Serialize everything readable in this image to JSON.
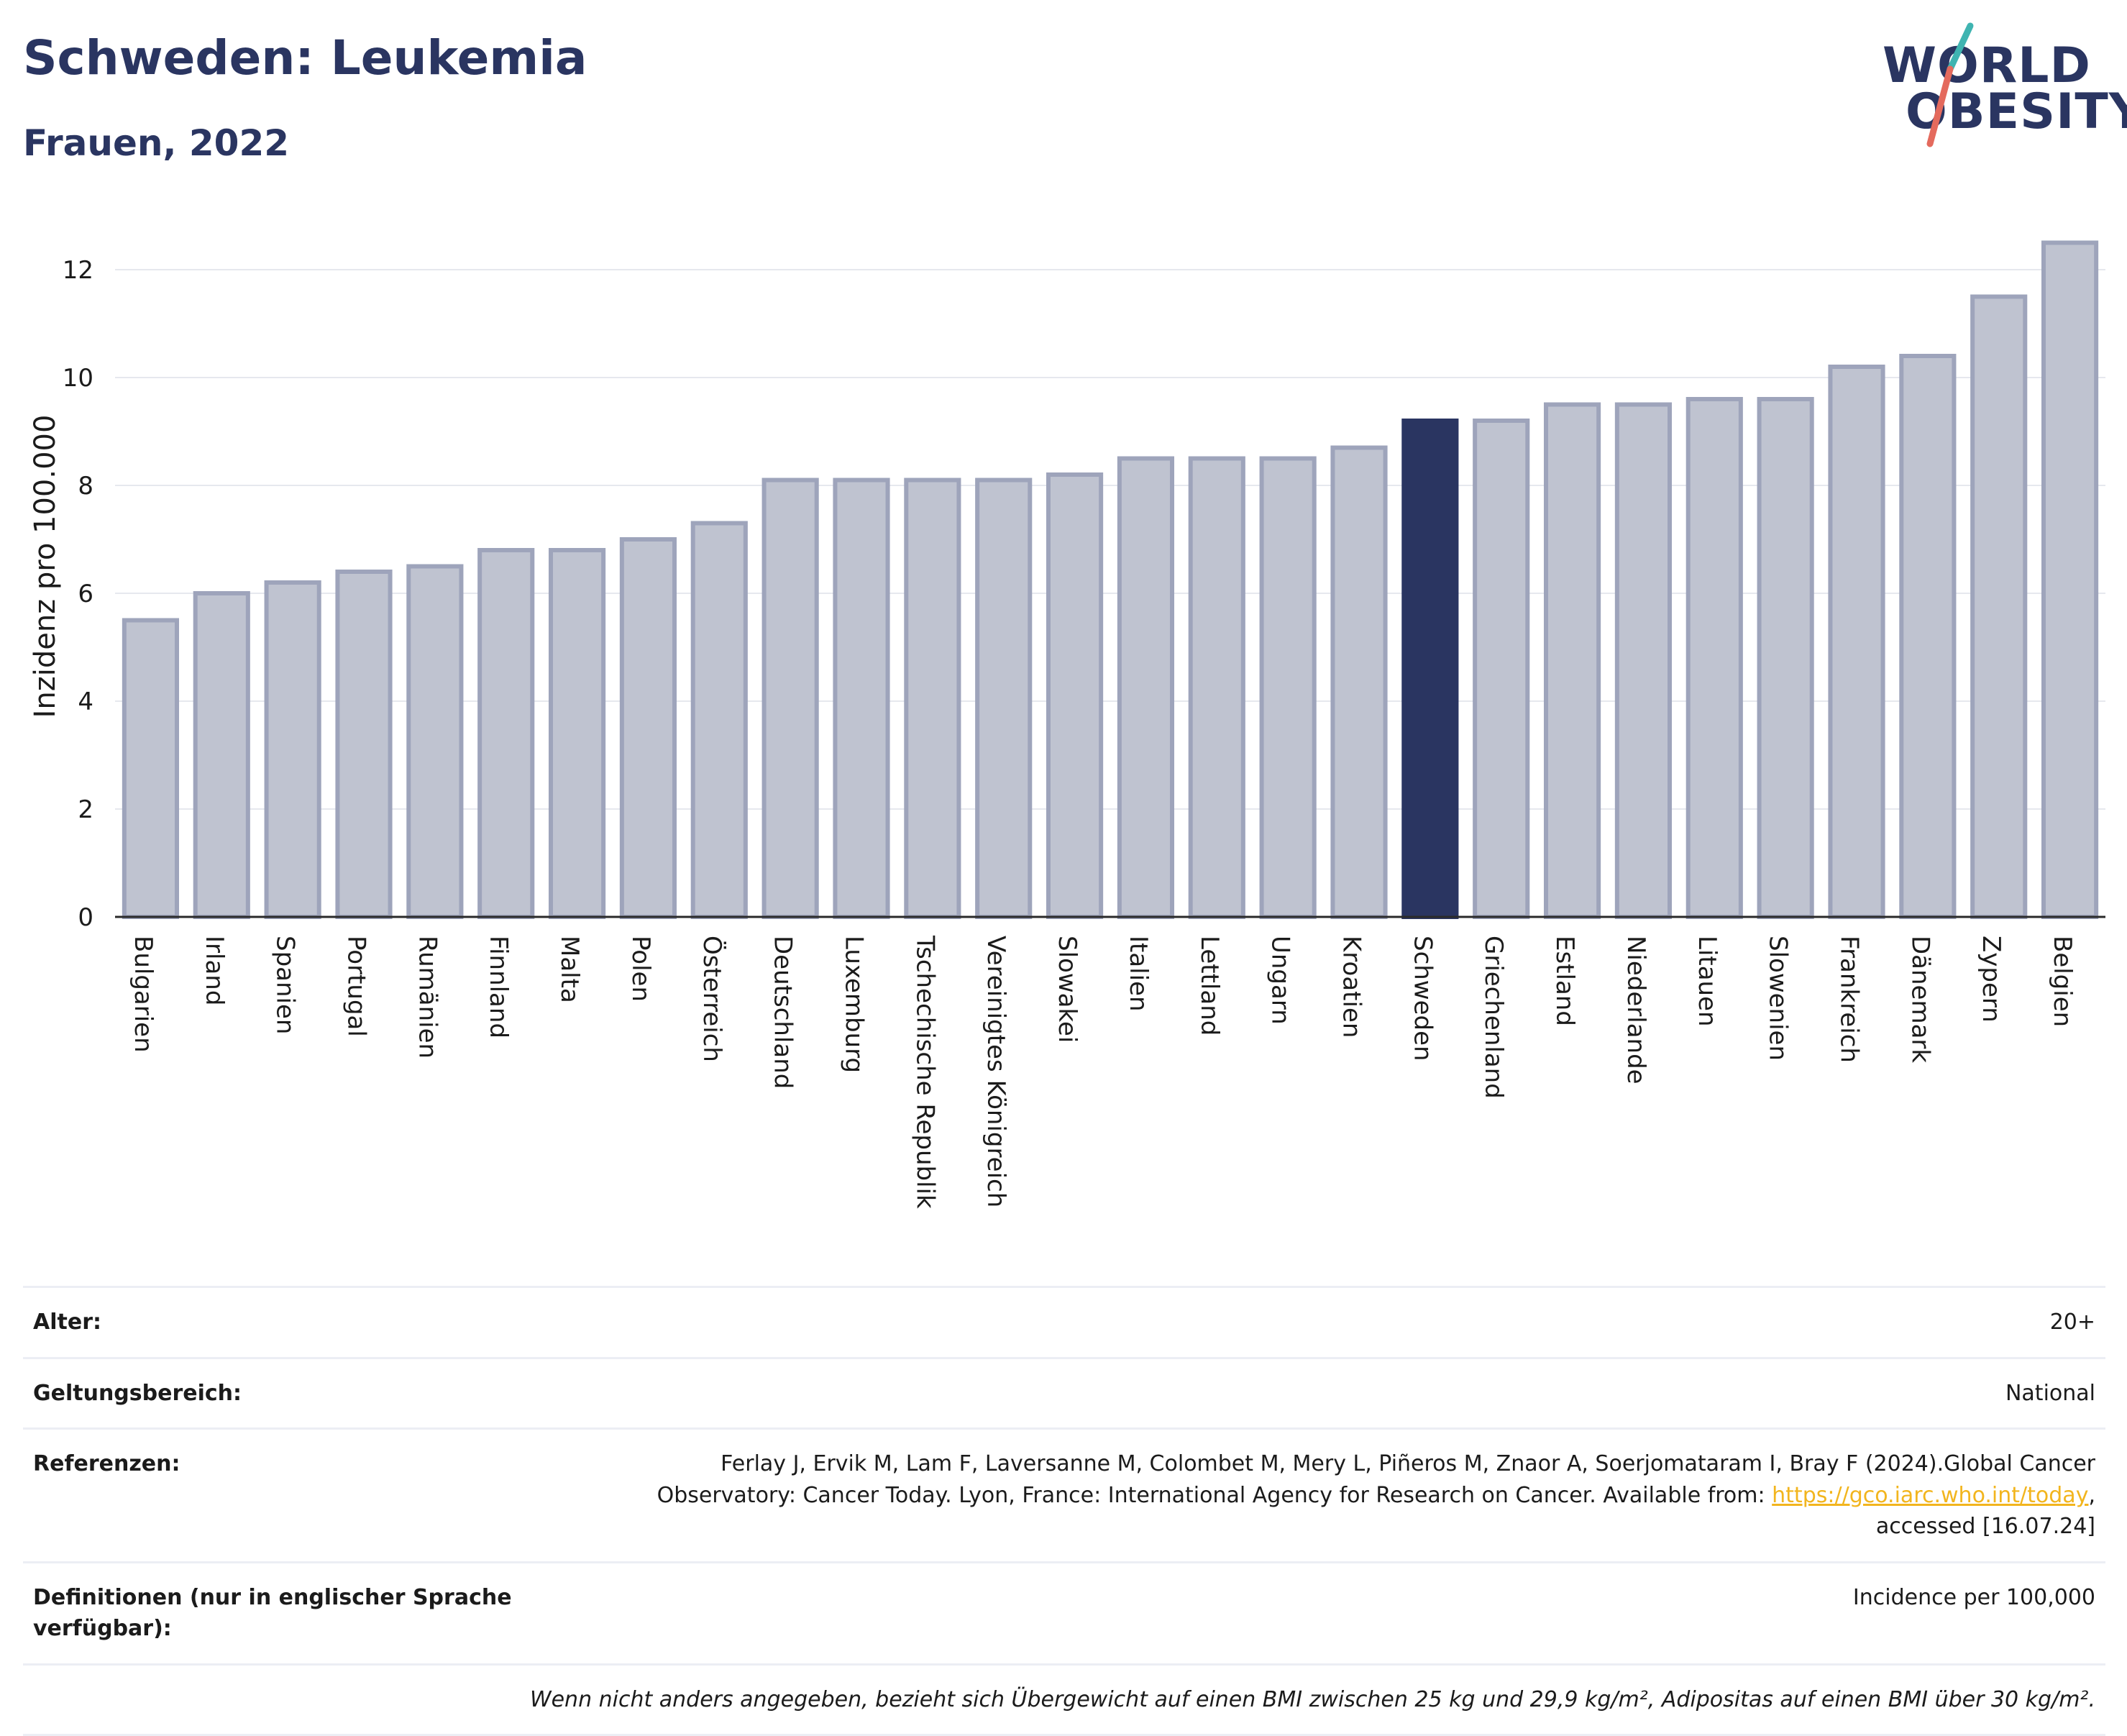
{
  "header": {
    "title": "Schweden: Leukemia",
    "subtitle": "Frauen, 2022"
  },
  "logo": {
    "line1": "WORLD",
    "line2": "OBESITY",
    "text_color": "#2a3561",
    "slash_colors": [
      "#3fb4b1",
      "#e46a5d"
    ]
  },
  "chart_data": {
    "type": "bar",
    "title": "Schweden: Leukemia",
    "subtitle": "Frauen, 2022",
    "ylabel": "Inzidenz pro 100.000",
    "xlabel": "",
    "ylim": [
      0,
      13
    ],
    "yticks": [
      0,
      2,
      4,
      6,
      8,
      10,
      12
    ],
    "grid": true,
    "highlight": "Schweden",
    "colors": {
      "bar": "#bfc3d0",
      "bar_border": "#9ea4bb",
      "highlight": "#2a3561"
    },
    "categories": [
      "Bulgarien",
      "Irland",
      "Spanien",
      "Portugal",
      "Rumänien",
      "Finnland",
      "Malta",
      "Polen",
      "Österreich",
      "Deutschland",
      "Luxemburg",
      "Tschechische Republik",
      "Vereinigtes Königreich",
      "Slowakei",
      "Italien",
      "Lettland",
      "Ungarn",
      "Kroatien",
      "Schweden",
      "Griechenland",
      "Estland",
      "Niederlande",
      "Litauen",
      "Slowenien",
      "Frankreich",
      "Dänemark",
      "Zypern",
      "Belgien"
    ],
    "values": [
      5.5,
      6.0,
      6.2,
      6.4,
      6.5,
      6.8,
      6.8,
      7.0,
      7.3,
      8.1,
      8.1,
      8.1,
      8.1,
      8.2,
      8.5,
      8.5,
      8.5,
      8.7,
      9.2,
      9.2,
      9.5,
      9.5,
      9.6,
      9.6,
      10.2,
      10.4,
      11.5,
      12.5
    ]
  },
  "info": {
    "rows": [
      {
        "label": "Alter:",
        "value": "20+"
      },
      {
        "label": "Geltungsbereich:",
        "value": "National"
      },
      {
        "label": "Referenzen:",
        "value_line1": "Ferlay J, Ervik M, Lam F, Laversanne M, Colombet M, Mery L, Piñeros M, Znaor A, Soerjomataram I, Bray F (2024).Global Cancer",
        "value_line2_pre": "Observatory: Cancer Today. Lyon, France: International Agency for Research on Cancer. Available from: ",
        "link": "https://gco.iarc.who.int/today",
        "value_line2_post": ",",
        "value_line3": "accessed [16.07.24]"
      },
      {
        "label": "Definitionen (nur in englischer Sprache verfügbar):",
        "value": "Incidence per 100,000"
      }
    ],
    "footnote": "Wenn nicht anders angegeben, bezieht sich Übergewicht auf einen BMI zwischen 25 kg und 29,9 kg/m², Adipositas auf einen BMI über 30 kg/m²."
  }
}
